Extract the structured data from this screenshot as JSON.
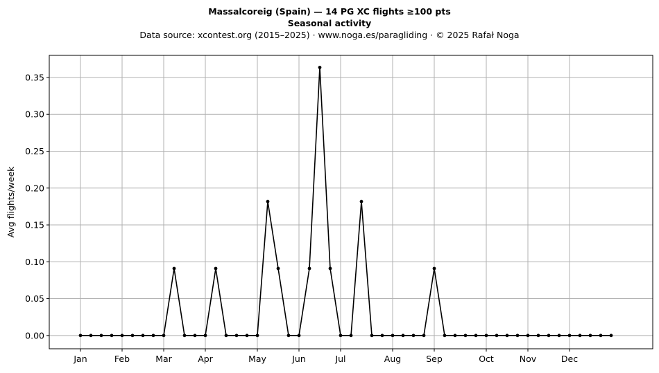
{
  "header": {
    "title": "Massalcoreig (Spain)  —  14 PG XC flights ≥100 pts",
    "subtitle": "Seasonal activity",
    "source": "Data source: xcontest.org (2015–2025)  ·  www.noga.es/paragliding  ·  © 2025 Rafał Noga"
  },
  "chart_data": {
    "type": "line",
    "title": "Massalcoreig (Spain)  —  14 PG XC flights ≥100 pts",
    "subtitle": "Seasonal activity",
    "xlabel": "",
    "ylabel": "Avg flights/week",
    "x_unit": "week of year",
    "x": [
      1,
      2,
      3,
      4,
      5,
      6,
      7,
      8,
      9,
      10,
      11,
      12,
      13,
      14,
      15,
      16,
      17,
      18,
      19,
      20,
      21,
      22,
      23,
      24,
      25,
      26,
      27,
      28,
      29,
      30,
      31,
      32,
      33,
      34,
      35,
      36,
      37,
      38,
      39,
      40,
      41,
      42,
      43,
      44,
      45,
      46,
      47,
      48,
      49,
      50,
      51,
      52
    ],
    "series": [
      {
        "values": [
          0,
          0,
          0,
          0,
          0,
          0,
          0,
          0,
          0,
          0.0909,
          0,
          0,
          0,
          0.0909,
          0,
          0,
          0,
          0,
          0.1818,
          0.0909,
          0,
          0,
          0.0909,
          0.3636,
          0.0909,
          0,
          0,
          0.1818,
          0,
          0,
          0,
          0,
          0,
          0,
          0.0909,
          0,
          0,
          0,
          0,
          0,
          0,
          0,
          0,
          0,
          0,
          0,
          0,
          0,
          0,
          0,
          0,
          0
        ],
        "color": "#000000",
        "marker": "circle"
      }
    ],
    "xlim": [
      -2,
      56
    ],
    "ylim": [
      -0.018,
      0.38
    ],
    "x_ticks": [
      {
        "label": "Jan",
        "x": 1
      },
      {
        "label": "Feb",
        "x": 5
      },
      {
        "label": "Mar",
        "x": 9
      },
      {
        "label": "Apr",
        "x": 13
      },
      {
        "label": "May",
        "x": 18
      },
      {
        "label": "Jun",
        "x": 22
      },
      {
        "label": "Jul",
        "x": 26
      },
      {
        "label": "Aug",
        "x": 31
      },
      {
        "label": "Sep",
        "x": 35
      },
      {
        "label": "Oct",
        "x": 40
      },
      {
        "label": "Nov",
        "x": 44
      },
      {
        "label": "Dec",
        "x": 48
      }
    ],
    "y_ticks": [
      {
        "label": "0.00",
        "y": 0
      },
      {
        "label": "0.05",
        "y": 0.05
      },
      {
        "label": "0.10",
        "y": 0.1
      },
      {
        "label": "0.15",
        "y": 0.15
      },
      {
        "label": "0.20",
        "y": 0.2
      },
      {
        "label": "0.25",
        "y": 0.25
      },
      {
        "label": "0.30",
        "y": 0.3
      },
      {
        "label": "0.35",
        "y": 0.35
      }
    ],
    "grid": true,
    "colors": {
      "line": "#000000",
      "grid": "#b0b0b0",
      "axes": "#000000"
    }
  }
}
